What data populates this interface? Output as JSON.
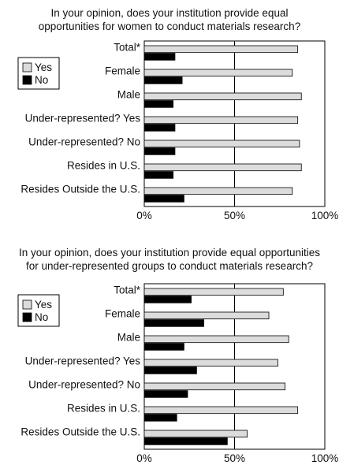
{
  "chart_data": [
    {
      "type": "bar",
      "orientation": "horizontal",
      "title_lines": [
        "In your opinion, does your institution provide equal",
        "opportunities for women to conduct materials research?"
      ],
      "categories": [
        "Total*",
        "Female",
        "Male",
        "Under-represented?  Yes",
        "Under-represented?  No",
        "Resides in U.S.",
        "Resides Outside the U.S."
      ],
      "series": [
        {
          "name": "Yes",
          "color": "#dcdcdc",
          "values": [
            85,
            82,
            87,
            85,
            86,
            87,
            82
          ]
        },
        {
          "name": "No",
          "color": "#000000",
          "values": [
            17,
            21,
            16,
            17,
            17,
            16,
            22
          ]
        }
      ],
      "xlim": [
        0,
        100
      ],
      "xticks": [
        "0%",
        "50%",
        "100%"
      ],
      "gridlines": [
        50
      ],
      "legend": "top-left"
    },
    {
      "type": "bar",
      "orientation": "horizontal",
      "title_lines": [
        "In your opinion, does your institution provide equal opportunities",
        "for under-represented groups to conduct materials research?"
      ],
      "categories": [
        "Total*",
        "Female",
        "Male",
        "Under-represented?  Yes",
        "Under-represented?  No",
        "Resides in U.S.",
        "Resides Outside the U.S."
      ],
      "series": [
        {
          "name": "Yes",
          "color": "#dcdcdc",
          "values": [
            77,
            69,
            80,
            74,
            78,
            85,
            57
          ]
        },
        {
          "name": "No",
          "color": "#000000",
          "values": [
            26,
            33,
            22,
            29,
            24,
            18,
            46
          ]
        }
      ],
      "xlim": [
        0,
        100
      ],
      "xticks": [
        "0%",
        "50%",
        "100%"
      ],
      "gridlines": [
        50
      ],
      "legend": "top-left"
    }
  ]
}
